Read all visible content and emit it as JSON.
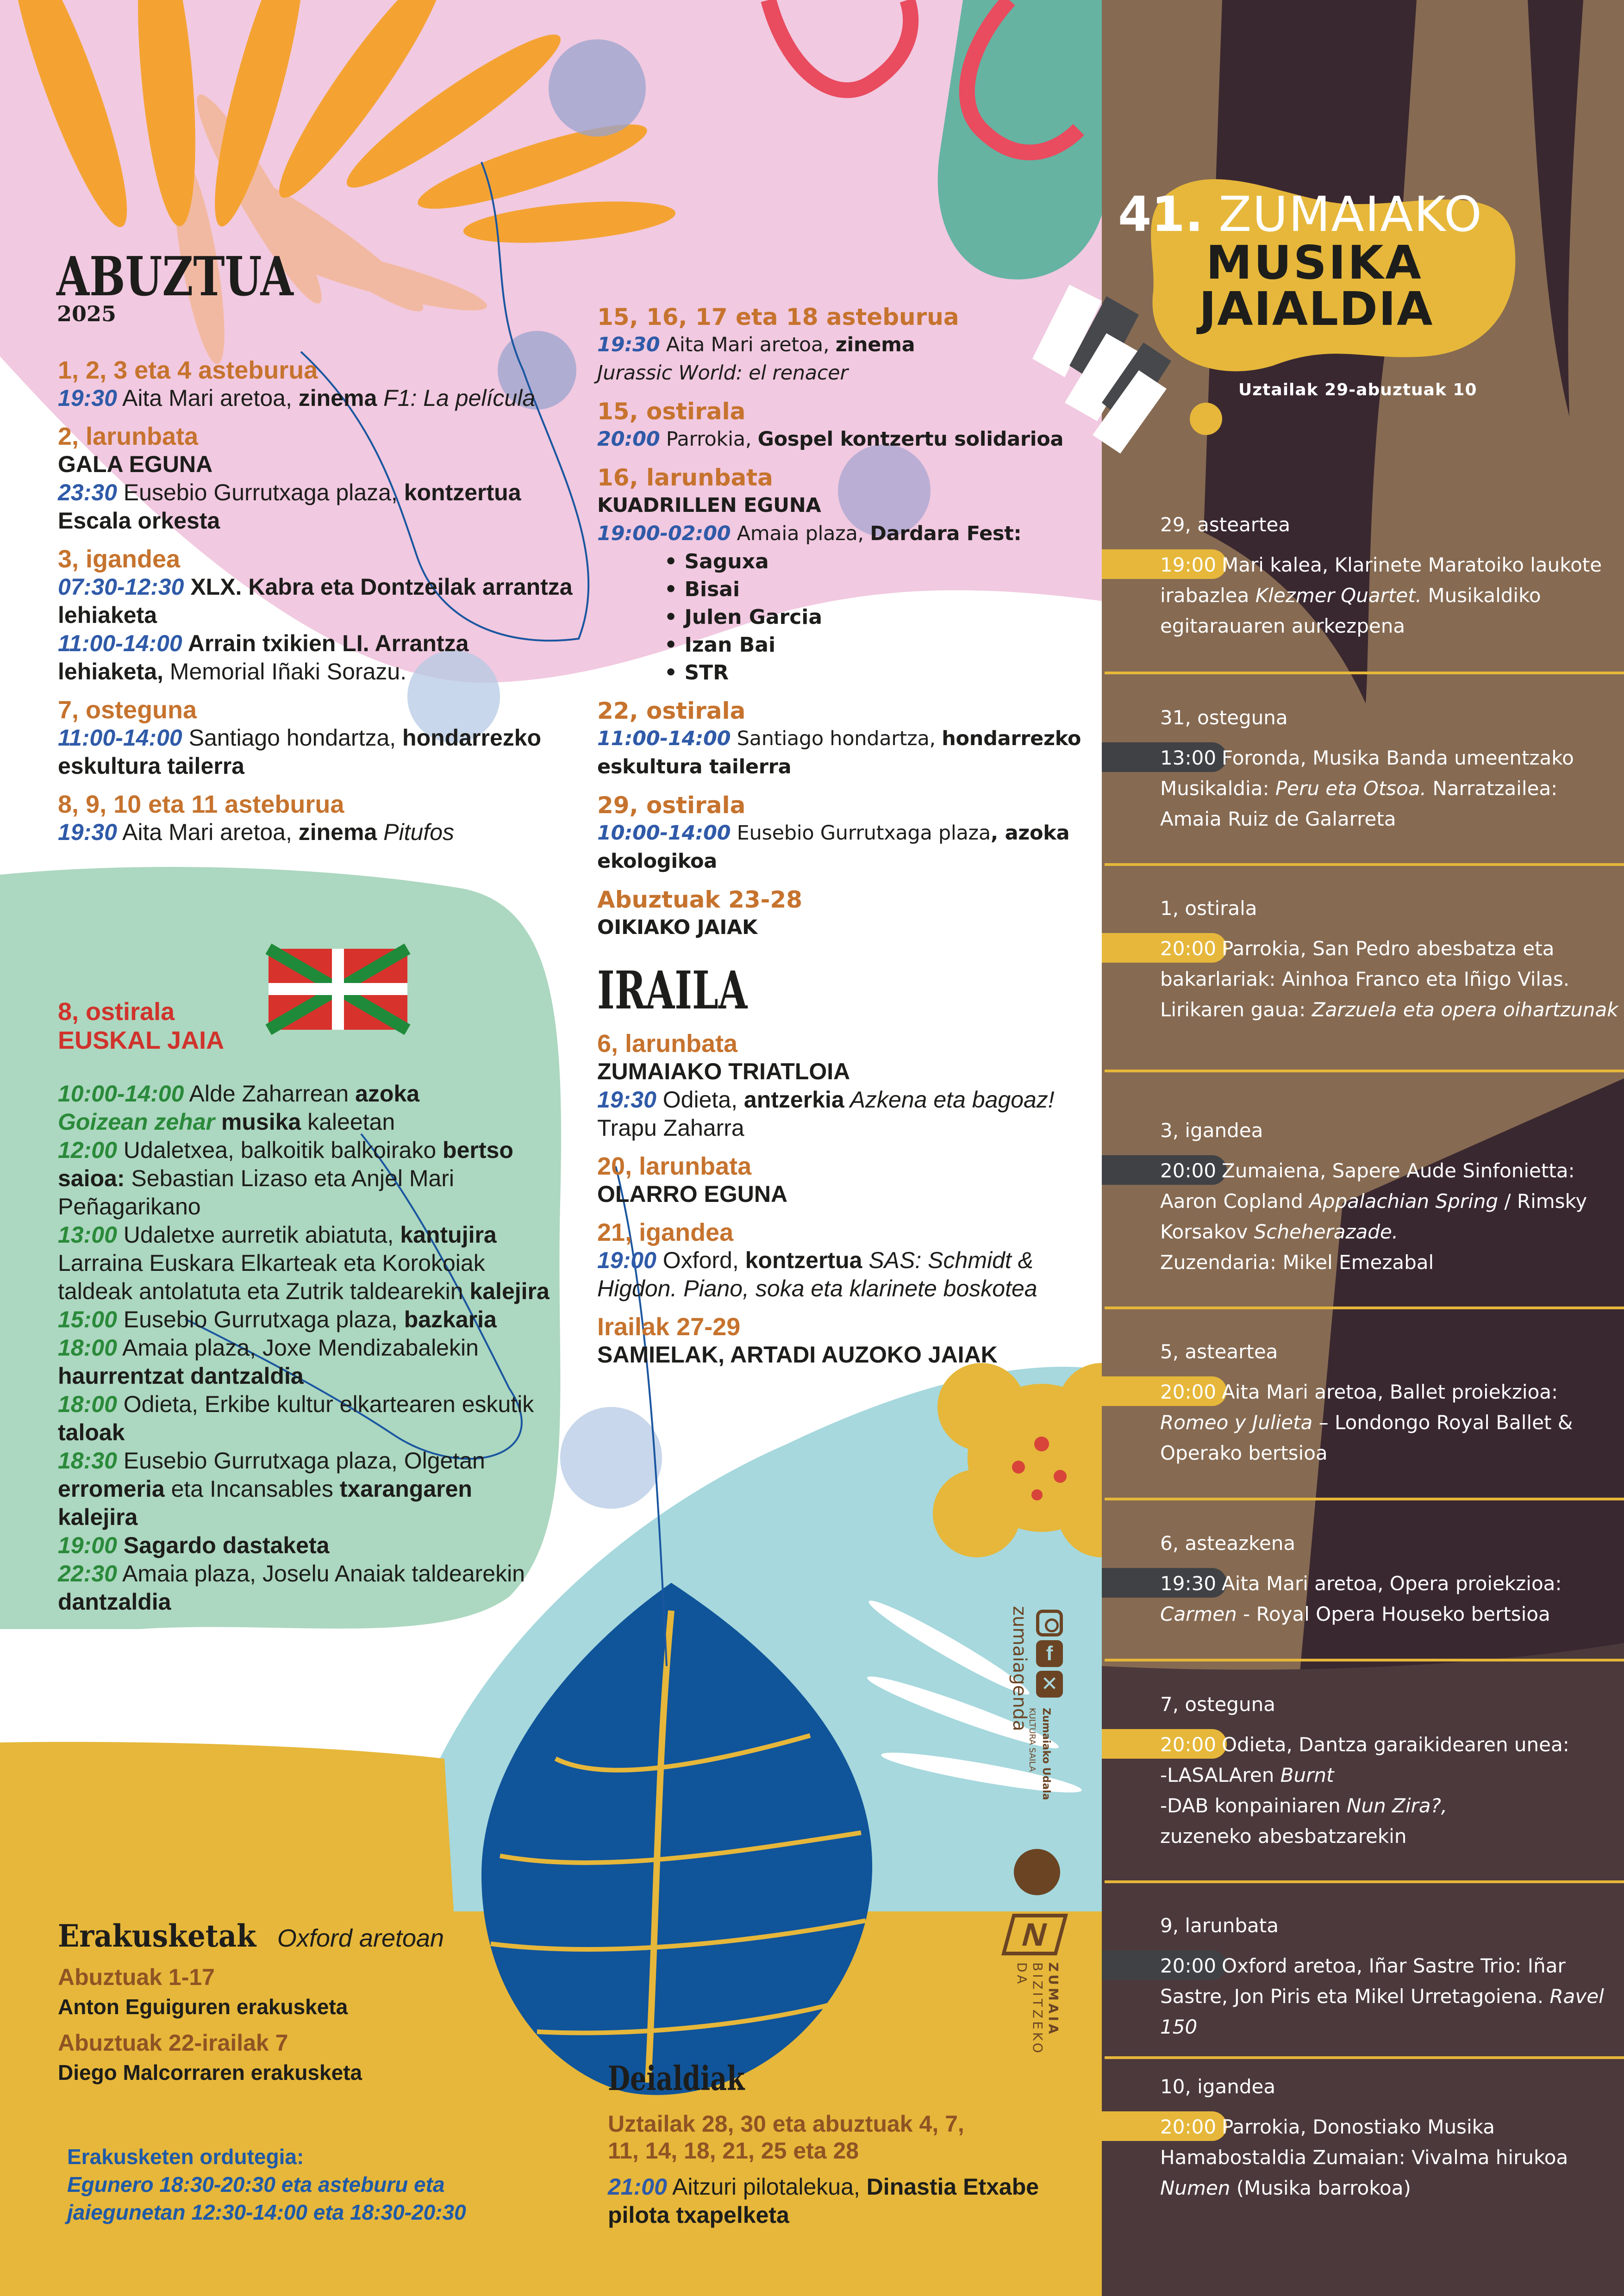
{
  "colors": {
    "pink": "#f1c9e0",
    "green_bg": "#acd7c0",
    "light_blue": "#a6d8dd",
    "yellow": "#e6b73a",
    "brown": "#866a52",
    "dark": "#3a2830",
    "heading_orange": "#c6732e",
    "time_blue": "#2f5aa8",
    "time_green": "#2a8a3a",
    "euskal_red": "#d0332c",
    "pill_dark": "#3f4144"
  },
  "abuztua": {
    "title": "ABUZTUA",
    "year": "2025",
    "left": [
      {
        "heading": "1, 2, 3 eta 4 asteburua",
        "lines": [
          [
            {
              "s": "t",
              "x": "19:30"
            },
            {
              "s": "n",
              "x": " Aita Mari aretoa, "
            },
            {
              "s": "b",
              "x": "zinema"
            },
            {
              "s": "i",
              "x": " F1: La película"
            }
          ]
        ]
      },
      {
        "heading": "2, larunbata",
        "lines": [
          [
            {
              "s": "b",
              "x": "GALA EGUNA"
            }
          ],
          [
            {
              "s": "t",
              "x": "23:30"
            },
            {
              "s": "n",
              "x": " Eusebio Gurrutxaga plaza, "
            },
            {
              "s": "b",
              "x": "kontzertua Escala orkesta"
            }
          ]
        ]
      },
      {
        "heading": "3, igandea",
        "lines": [
          [
            {
              "s": "t",
              "x": "07:30-12:30"
            },
            {
              "s": "b",
              "x": " XLX. Kabra eta Dontzeilak arrantza lehiaketa"
            }
          ],
          [
            {
              "s": "t",
              "x": "11:00-14:00"
            },
            {
              "s": "b",
              "x": " Arrain txikien LI. Arrantza lehiaketa,"
            },
            {
              "s": "n",
              "x": " Memorial Iñaki Sorazu."
            }
          ]
        ]
      },
      {
        "heading": "7, osteguna",
        "lines": [
          [
            {
              "s": "t",
              "x": "11:00-14:00"
            },
            {
              "s": "n",
              "x": " Santiago hondartza, "
            },
            {
              "s": "b",
              "x": "hondarrezko eskultura tailerra"
            }
          ]
        ]
      },
      {
        "heading": "8, 9, 10 eta 11 asteburua",
        "lines": [
          [
            {
              "s": "t",
              "x": "19:30"
            },
            {
              "s": "n",
              "x": " Aita Mari aretoa, "
            },
            {
              "s": "b",
              "x": "zinema"
            },
            {
              "s": "i",
              "x": " Pitufos"
            }
          ]
        ]
      }
    ],
    "middle": [
      {
        "heading": "15, 16, 17 eta 18 asteburua",
        "lines": [
          [
            {
              "s": "t",
              "x": "19:30"
            },
            {
              "s": "n",
              "x": " Aita Mari aretoa, "
            },
            {
              "s": "b",
              "x": "zinema"
            }
          ],
          [
            {
              "s": "i",
              "x": "Jurassic World: el renacer"
            }
          ]
        ]
      },
      {
        "heading": "15, ostirala",
        "lines": [
          [
            {
              "s": "t",
              "x": "20:00"
            },
            {
              "s": "n",
              "x": " Parrokia, "
            },
            {
              "s": "b",
              "x": "Gospel kontzertu solidarioa"
            }
          ]
        ]
      },
      {
        "heading": "16, larunbata",
        "lines": [
          [
            {
              "s": "b",
              "x": "KUADRILLEN EGUNA"
            }
          ],
          [
            {
              "s": "t",
              "x": "19:00-02:00"
            },
            {
              "s": "n",
              "x": " Amaia  plaza, "
            },
            {
              "s": "b",
              "x": "Dardara Fest:"
            }
          ]
        ],
        "bullets": [
          "Saguxa",
          "Bisai",
          "Julen Garcia",
          "Izan Bai",
          "STR"
        ]
      },
      {
        "heading": "22, ostirala",
        "lines": [
          [
            {
              "s": "t",
              "x": "11:00-14:00"
            },
            {
              "s": "n",
              "x": " Santiago hondartza, "
            },
            {
              "s": "b",
              "x": "hondarrezko eskultura tailerra"
            }
          ]
        ]
      },
      {
        "heading": "29, ostirala",
        "lines": [
          [
            {
              "s": "t",
              "x": "10:00-14:00"
            },
            {
              "s": "n",
              "x": " Eusebio Gurrutxaga plaza"
            },
            {
              "s": "b",
              "x": ", azoka ekologikoa"
            }
          ]
        ]
      },
      {
        "heading": "Abuztuak 23-28",
        "lines": [
          [
            {
              "s": "b",
              "x": "OIKIAKO JAIAK"
            }
          ]
        ]
      }
    ]
  },
  "euskal_jaia": {
    "date": "8, ostirala",
    "title": "EUSKAL JAIA",
    "lines": [
      [
        {
          "s": "g",
          "x": "10:00-14:00"
        },
        {
          "s": "n",
          "x": " Alde Zaharrean "
        },
        {
          "s": "b",
          "x": "azoka"
        }
      ],
      [
        {
          "s": "g",
          "x": "Goizean zehar"
        },
        {
          "s": "b",
          "x": " musika"
        },
        {
          "s": "n",
          "x": " kaleetan"
        }
      ],
      [
        {
          "s": "g",
          "x": "12:00"
        },
        {
          "s": "n",
          "x": " Udaletxea, balkoitik balkoirako "
        },
        {
          "s": "b",
          "x": "bertso saioa:"
        },
        {
          "s": "n",
          "x": " Sebastian Lizaso eta Anjel Mari Peñagarikano"
        }
      ],
      [
        {
          "s": "g",
          "x": "13:00"
        },
        {
          "s": "n",
          "x": " Udaletxe aurretik abiatuta, "
        },
        {
          "s": "b",
          "x": "kantujira"
        },
        {
          "s": "n",
          "x": " Larraina Euskara Elkarteak eta Korokoiak taldeak antolatuta eta Zutrik taldearekin "
        },
        {
          "s": "b",
          "x": "kalejira"
        }
      ],
      [
        {
          "s": "g",
          "x": "15:00"
        },
        {
          "s": "n",
          "x": " Eusebio Gurrutxaga plaza, "
        },
        {
          "s": "b",
          "x": "bazkaria"
        }
      ],
      [
        {
          "s": "g",
          "x": "18:00"
        },
        {
          "s": "n",
          "x": " Amaia plaza, Joxe Mendizabalekin "
        },
        {
          "s": "b",
          "x": "haurrentzat dantzaldia"
        }
      ],
      [
        {
          "s": "g",
          "x": "18:00"
        },
        {
          "s": "n",
          "x": " Odieta, Erkibe kultur elkartearen eskutik "
        },
        {
          "s": "b",
          "x": "taloak"
        }
      ],
      [
        {
          "s": "g",
          "x": "18:30"
        },
        {
          "s": "n",
          "x": " Eusebio Gurrutxaga plaza, Olgetan "
        },
        {
          "s": "b",
          "x": "erromeria"
        },
        {
          "s": "n",
          "x": " eta Incansables "
        },
        {
          "s": "b",
          "x": "txarangaren kalejira"
        }
      ],
      [
        {
          "s": "g",
          "x": "19:00"
        },
        {
          "s": "b",
          "x": " Sagardo dastaketa"
        }
      ],
      [
        {
          "s": "g",
          "x": "22:30"
        },
        {
          "s": "n",
          "x": " Amaia plaza, Joselu Anaiak taldearekin "
        },
        {
          "s": "b",
          "x": "dantzaldia"
        }
      ]
    ]
  },
  "iraila": {
    "title": "IRAILA",
    "blocks": [
      {
        "heading": "6, larunbata",
        "lines": [
          [
            {
              "s": "b",
              "x": "ZUMAIAKO TRIATLOIA"
            }
          ],
          [
            {
              "s": "t",
              "x": "19:30"
            },
            {
              "s": "n",
              "x": " Odieta, "
            },
            {
              "s": "b",
              "x": "antzerkia"
            },
            {
              "s": "i",
              "x": " Azkena eta bagoaz!"
            },
            {
              "s": "n",
              "x": " Trapu Zaharra"
            }
          ]
        ]
      },
      {
        "heading": "20, larunbata",
        "lines": [
          [
            {
              "s": "b",
              "x": "OLARRO EGUNA"
            }
          ]
        ]
      },
      {
        "heading": "21, igandea",
        "lines": [
          [
            {
              "s": "t",
              "x": "19:00"
            },
            {
              "s": "n",
              "x": " Oxford, "
            },
            {
              "s": "b",
              "x": "kontzertua"
            },
            {
              "s": "i",
              "x": " SAS: Schmidt & Higdon. Piano, soka eta klarinete boskotea"
            }
          ]
        ]
      },
      {
        "heading": "Irailak 27-29",
        "lines": [
          [
            {
              "s": "b",
              "x": "SAMIELAK, ARTADI AUZOKO JAIAK"
            }
          ]
        ]
      }
    ]
  },
  "erakusketak": {
    "title": "Erakusketak",
    "subtitle": "Oxford aretoan",
    "items": [
      {
        "dates": "Abuztuak 1-17",
        "name": "Anton Eguiguren erakusketa"
      },
      {
        "dates": "Abuztuak 22-irailak 7",
        "name": "Diego Malcorraren erakusketa"
      }
    ],
    "schedule_label": "Erakusketen ordutegia:",
    "schedule": "Egunero 18:30-20:30 eta asteburu eta jaiegunetan 12:30-14:00 eta 18:30-20:30"
  },
  "deialdiak": {
    "title": "Deialdiak",
    "dates": "Uztailak 28, 30 eta abuztuak 4, 7, 11, 14, 18, 21, 25 eta 28",
    "lines": [
      [
        {
          "s": "t",
          "x": "21:00"
        },
        {
          "s": "n",
          "x": " Aitzuri pilotalekua, "
        },
        {
          "s": "b",
          "x": "Dinastia Etxabe pilota txapelketa"
        }
      ]
    ]
  },
  "festival": {
    "number": "41.",
    "line1": "ZUMAIAKO",
    "line2": "MUSIKA",
    "line3": "JAIALDIA",
    "dates": "Uztailak 29-abuztuak 10",
    "events": [
      {
        "day": "29, asteartea",
        "time": "19:00",
        "pill": "#e6b73a",
        "text": [
          {
            "s": "n",
            "x": "Mari kalea, Klarinete Maratoiko laukote irabazlea "
          },
          {
            "s": "i",
            "x": "Klezmer Quartet."
          },
          {
            "s": "n",
            "x": " Musikaldiko egitarauaren aurkezpena"
          }
        ]
      },
      {
        "day": "31, osteguna",
        "time": "13:00",
        "pill": "#3f4144",
        "text": [
          {
            "s": "n",
            "x": "Foronda, Musika Banda umeentzako Musikaldia: "
          },
          {
            "s": "i",
            "x": "Peru eta Otsoa."
          },
          {
            "s": "n",
            "x": " Narratzailea: Amaia Ruiz de Galarreta"
          }
        ]
      },
      {
        "day": "1, ostirala",
        "time": "20:00",
        "pill": "#e6b73a",
        "text": [
          {
            "s": "n",
            "x": "Parrokia, San Pedro abesbatza eta bakarlariak: Ainhoa Franco eta Iñigo Vilas.\nLirikaren gaua: "
          },
          {
            "s": "i",
            "x": "Zarzuela eta opera oihartzunak"
          }
        ]
      },
      {
        "day": "3, igandea",
        "time": "20:00",
        "pill": "#3f4144",
        "text": [
          {
            "s": "n",
            "x": "Zumaiena, Sapere Aude Sinfonietta: Aaron Copland "
          },
          {
            "s": "i",
            "x": "Appalachian Spring"
          },
          {
            "s": "n",
            "x": " / Rimsky Korsakov "
          },
          {
            "s": "i",
            "x": "Scheherazade."
          },
          {
            "s": "n",
            "x": "\nZuzendaria: Mikel Emezabal"
          }
        ]
      },
      {
        "day": "5, asteartea",
        "time": "20:00",
        "pill": "#e6b73a",
        "text": [
          {
            "s": "n",
            "x": "Aita Mari aretoa, Ballet proiekzioa: "
          },
          {
            "s": "i",
            "x": "Romeo y Julieta"
          },
          {
            "s": "n",
            "x": " – Londongo Royal Ballet & Operako bertsioa"
          }
        ]
      },
      {
        "day": "6, asteazkena",
        "time": "19:30",
        "pill": "#3f4144",
        "text": [
          {
            "s": "n",
            "x": "Aita Mari aretoa, Opera proiekzioa: "
          },
          {
            "s": "i",
            "x": "Carmen"
          },
          {
            "s": "n",
            "x": " - Royal Opera Houseko bertsioa"
          }
        ]
      },
      {
        "day": "7, osteguna",
        "time": "20:00",
        "pill": "#e6b73a",
        "text": [
          {
            "s": "n",
            "x": "Odieta, Dantza garaikidearen unea:\n-LASALAren "
          },
          {
            "s": "i",
            "x": "Burnt"
          },
          {
            "s": "n",
            "x": "\n-DAB konpainiaren "
          },
          {
            "s": "i",
            "x": "Nun Zira?,"
          },
          {
            "s": "n",
            "x": "\nzuzeneko abesbatzarekin"
          }
        ]
      },
      {
        "day": "9, larunbata",
        "time": "20:00",
        "pill": "#3f4144",
        "text": [
          {
            "s": "n",
            "x": "Oxford aretoa, Iñar Sastre Trio: Iñar Sastre, Jon Piris eta Mikel Urretagoiena. "
          },
          {
            "s": "i",
            "x": "Ravel 150"
          }
        ]
      },
      {
        "day": "10, igandea",
        "time": "20:00",
        "pill": "#e6b73a",
        "text": [
          {
            "s": "n",
            "x": "Parrokia, Donostiako Musika Hamabostaldia Zumaian: Vivalma hirukoa "
          },
          {
            "s": "i",
            "x": "Numen"
          },
          {
            "s": "n",
            "x": " (Musika barrokoa)"
          }
        ]
      }
    ]
  },
  "logos": {
    "agenda": "zumaiagenda",
    "social_icons": [
      "instagram-icon",
      "facebook-icon",
      "x-icon"
    ],
    "udala": "Zumaiako Udala",
    "kultura": "KULTURA SAILA",
    "brand_line1": "ZUMAIA",
    "brand_line2": "BIZITZEKO",
    "brand_line3": "DA"
  }
}
